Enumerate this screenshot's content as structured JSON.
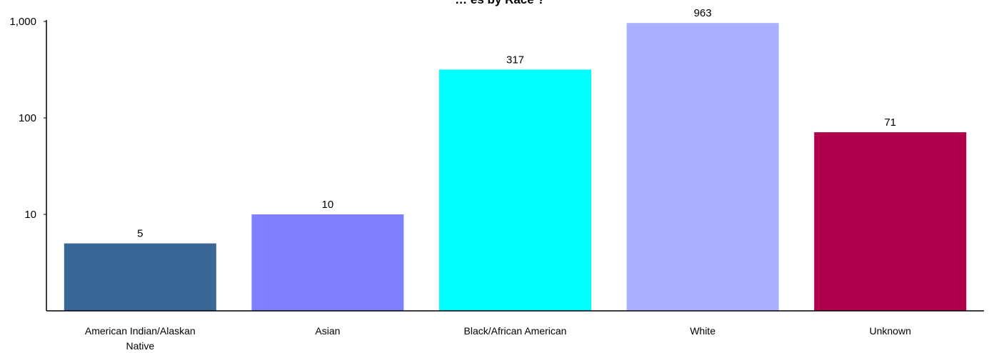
{
  "chart_data": {
    "type": "bar",
    "title": "… es by Race ?",
    "xlabel": "",
    "ylabel": "",
    "yscale": "log",
    "ylim": [
      1,
      1000
    ],
    "yticks": [
      10,
      100,
      1000
    ],
    "ytick_labels": [
      "10",
      "100",
      "1,000"
    ],
    "grid": false,
    "legend": "none",
    "categories": [
      "American Indian/Alaskan Native",
      "Asian",
      "Black/African American",
      "White",
      "Unknown"
    ],
    "category_lines": [
      [
        "American Indian/Alaskan",
        "Native"
      ],
      [
        "Asian"
      ],
      [
        "Black/African American"
      ],
      [
        "White"
      ],
      [
        "Unknown"
      ]
    ],
    "values": [
      5,
      10,
      317,
      963,
      71
    ],
    "colors": [
      "#3A6795",
      "#7F80FF",
      "#00FFFF",
      "#AAAFFF",
      "#AE004B"
    ]
  }
}
